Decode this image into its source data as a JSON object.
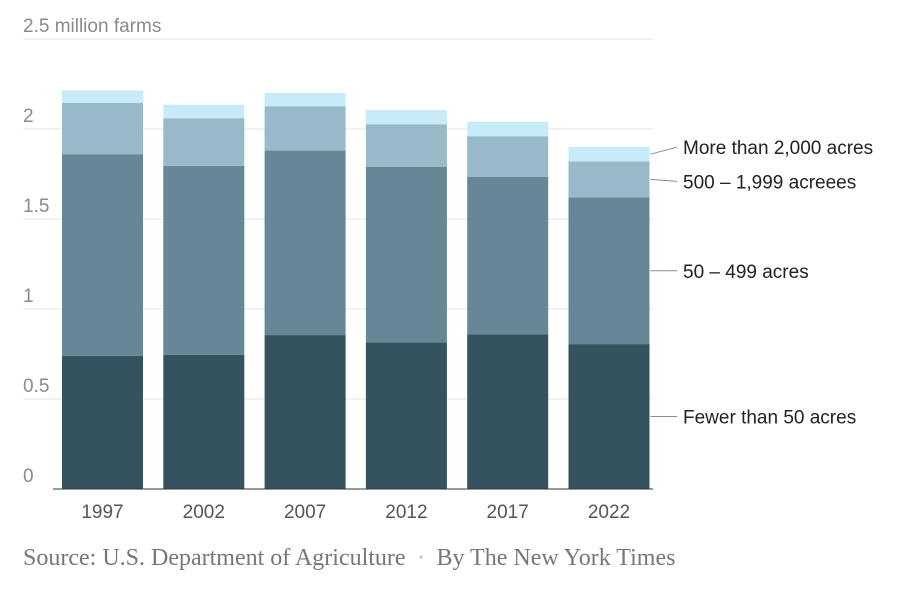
{
  "chart_data": {
    "type": "bar",
    "stacked": true,
    "categories": [
      "1997",
      "2002",
      "2007",
      "2012",
      "2017",
      "2022"
    ],
    "series": [
      {
        "name": "Fewer than 50 acres",
        "color": "#34535f",
        "values": [
          0.74,
          0.745,
          0.855,
          0.815,
          0.86,
          0.805
        ]
      },
      {
        "name": "50 – 499 acres",
        "color": "#658796",
        "values": [
          1.12,
          1.05,
          1.025,
          0.975,
          0.875,
          0.815
        ]
      },
      {
        "name": "500 – 1,999 acreees",
        "color": "#97b9c8",
        "values": [
          0.285,
          0.265,
          0.245,
          0.235,
          0.225,
          0.2
        ]
      },
      {
        "name": "More than 2,000 acres",
        "color": "#c7ecf7",
        "values": [
          0.07,
          0.075,
          0.075,
          0.08,
          0.08,
          0.08
        ]
      }
    ],
    "ylim": [
      0,
      2.5
    ],
    "yticks": [
      0,
      0.5,
      1,
      1.5,
      2,
      2.5
    ],
    "ytick_labels": [
      "0",
      "0.5",
      "1",
      "1.5",
      "2",
      "2.5 million farms"
    ],
    "grid": true,
    "legend": "right, labels beside final bar"
  },
  "footer": {
    "source": "Source: U.S. Department of Agriculture",
    "byline": "By The New York Times",
    "separator": "•"
  }
}
